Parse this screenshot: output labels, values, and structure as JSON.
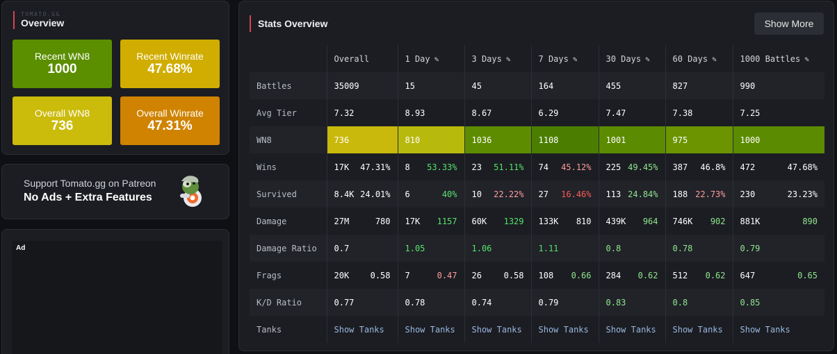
{
  "overview": {
    "brand": "TOMATO.GG",
    "title": "Overview",
    "tiles": [
      {
        "label": "Recent WN8",
        "value": "1000",
        "color": "#5b8f00"
      },
      {
        "label": "Recent Winrate",
        "value": "47.68%",
        "color": "#d0ad00"
      },
      {
        "label": "Overall WN8",
        "value": "736",
        "color": "#cbbb0b"
      },
      {
        "label": "Overall Winrate",
        "value": "47.31%",
        "color": "#d08300"
      }
    ]
  },
  "patreon": {
    "line1": "Support Tomato.gg on Patreon",
    "line2": "No Ads + Extra Features",
    "icon": "tomato-mascot-icon"
  },
  "ad": {
    "label": "Ad"
  },
  "stats": {
    "title": "Stats Overview",
    "show_more": "Show More",
    "columns": [
      "Overall",
      "1 Day",
      "3 Days",
      "7 Days",
      "30 Days",
      "60 Days",
      "1000 Battles"
    ],
    "rows": {
      "battles": {
        "label": "Battles",
        "values": [
          "35009",
          "15",
          "45",
          "164",
          "455",
          "827",
          "990"
        ]
      },
      "avg_tier": {
        "label": "Avg Tier",
        "values": [
          "7.32",
          "8.93",
          "8.67",
          "6.29",
          "7.47",
          "7.38",
          "7.25"
        ]
      },
      "wn8": {
        "label": "WN8",
        "values": [
          "736",
          "810",
          "1036",
          "1108",
          "1001",
          "975",
          "1000"
        ],
        "colors": [
          "#c9b90c",
          "#b8b90d",
          "#5e8c00",
          "#4b7e00",
          "#5b8b00",
          "#6b9400",
          "#5b8b00"
        ]
      },
      "wins": {
        "label": "Wins",
        "values": [
          "17K",
          "8",
          "23",
          "74",
          "225",
          "387",
          "472"
        ],
        "rates": [
          "47.31%",
          "53.33%",
          "51.11%",
          "45.12%",
          "49.45%",
          "46.8%",
          "47.68%"
        ]
      },
      "survived": {
        "label": "Survived",
        "values": [
          "8.4K",
          "6",
          "10",
          "27",
          "113",
          "188",
          "230"
        ],
        "rates": [
          "24.01%",
          "40%",
          "22.22%",
          "16.46%",
          "24.84%",
          "22.73%",
          "23.23%"
        ]
      },
      "damage": {
        "label": "Damage",
        "values": [
          "27M",
          "17K",
          "60K",
          "133K",
          "439K",
          "746K",
          "881K"
        ],
        "avg": [
          "780",
          "1157",
          "1329",
          "810",
          "964",
          "902",
          "890"
        ]
      },
      "damage_ratio": {
        "label": "Damage Ratio",
        "values": [
          "0.7",
          "1.05",
          "1.06",
          "1.11",
          "0.8",
          "0.78",
          "0.79"
        ]
      },
      "frags": {
        "label": "Frags",
        "values": [
          "20K",
          "7",
          "26",
          "108",
          "284",
          "512",
          "647"
        ],
        "avg": [
          "0.58",
          "0.47",
          "0.58",
          "0.66",
          "0.62",
          "0.62",
          "0.65"
        ]
      },
      "kd_ratio": {
        "label": "K/D Ratio",
        "values": [
          "0.77",
          "0.78",
          "0.74",
          "0.79",
          "0.83",
          "0.8",
          "0.85"
        ]
      },
      "tanks": {
        "label": "Tanks",
        "link": "Show Tanks"
      }
    },
    "colors": {
      "accent": "#d9434e",
      "green": "#57e36b",
      "lightgreen": "#8fe68e",
      "red": "#ff5a5a",
      "pink": "#ff9c9c"
    }
  }
}
